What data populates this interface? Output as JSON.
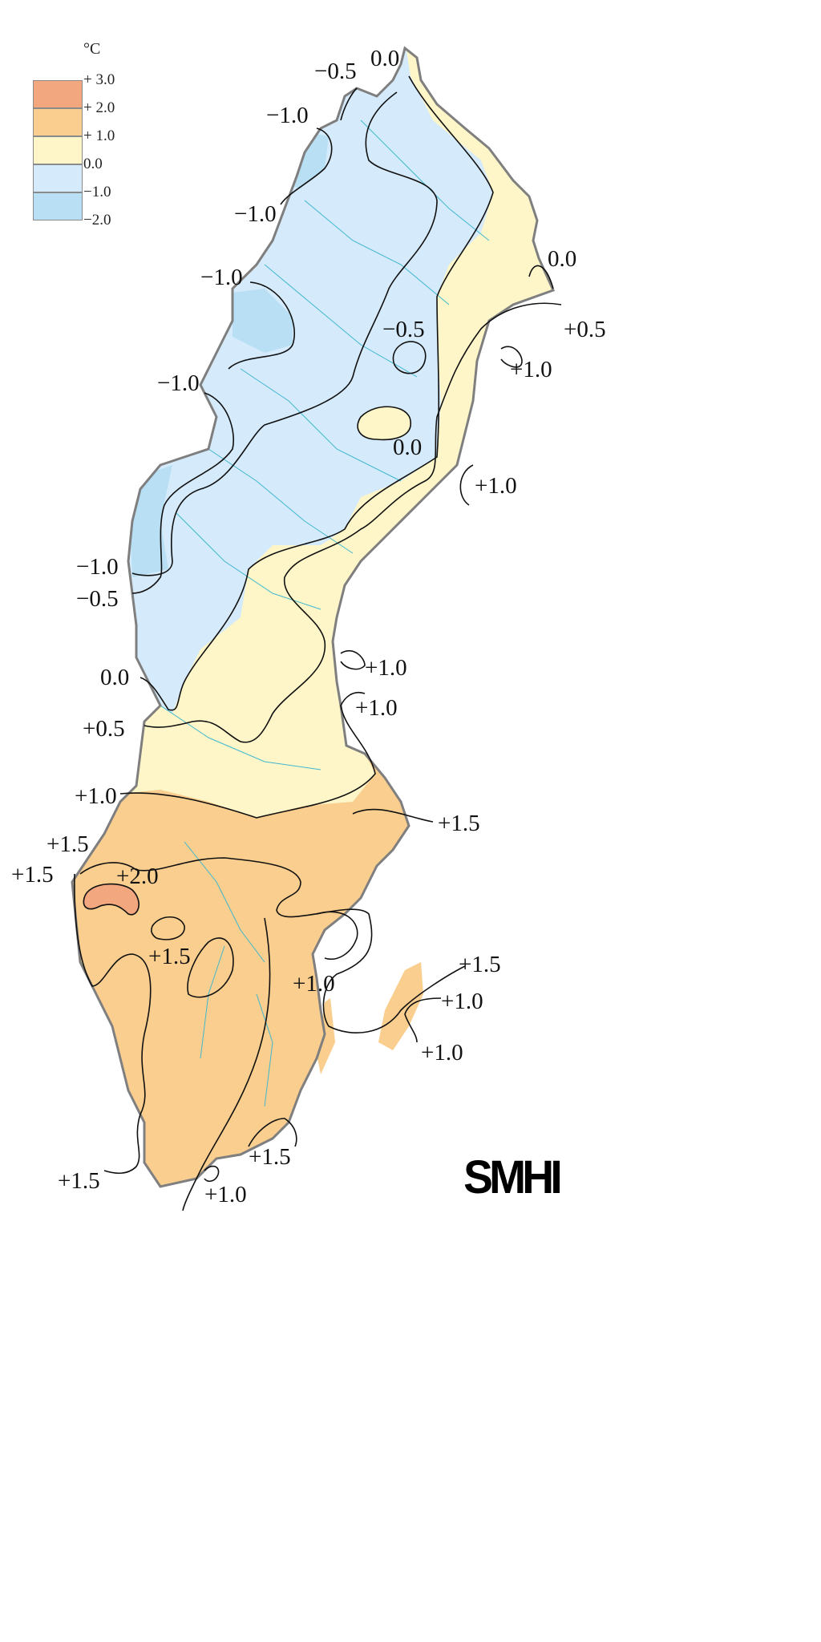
{
  "legend": {
    "unit": "°C",
    "ticks": [
      "+ 3.0",
      "+ 2.0",
      "+ 1.0",
      "0.0",
      "−1.0",
      "−2.0"
    ],
    "classes": [
      {
        "range": "+2.0 to +3.0",
        "color": "#F2A77E"
      },
      {
        "range": "+1.0 to +2.0",
        "color": "#F9CE8E"
      },
      {
        "range": "0.0 to +1.0",
        "color": "#FEF6C8"
      },
      {
        "range": "−1.0 to 0.0",
        "color": "#D5EAFA"
      },
      {
        "range": "−2.0 to −1.0",
        "color": "#B8DFF4"
      }
    ]
  },
  "contour_labels": [
    "−0.5",
    "0.0",
    "−1.0",
    "−1.0",
    "0.0",
    "−1.0",
    "+0.5",
    "−0.5",
    "+1.0",
    "−1.0",
    "0.0",
    "+1.0",
    "−1.0",
    "−0.5",
    "+1.0",
    "0.0",
    "+1.0",
    "+0.5",
    "+1.0",
    "+1.5",
    "+1.5",
    "+1.5",
    "+2.0",
    "+1.5",
    "+1.0",
    "+1.5",
    "+1.0",
    "+1.0",
    "+1.5",
    "+1.5",
    "+1.0"
  ],
  "logo": "SMHI",
  "colors": {
    "border": "#7f7f7f",
    "rivers": "#3fb8d0",
    "isolines": "#111111"
  }
}
